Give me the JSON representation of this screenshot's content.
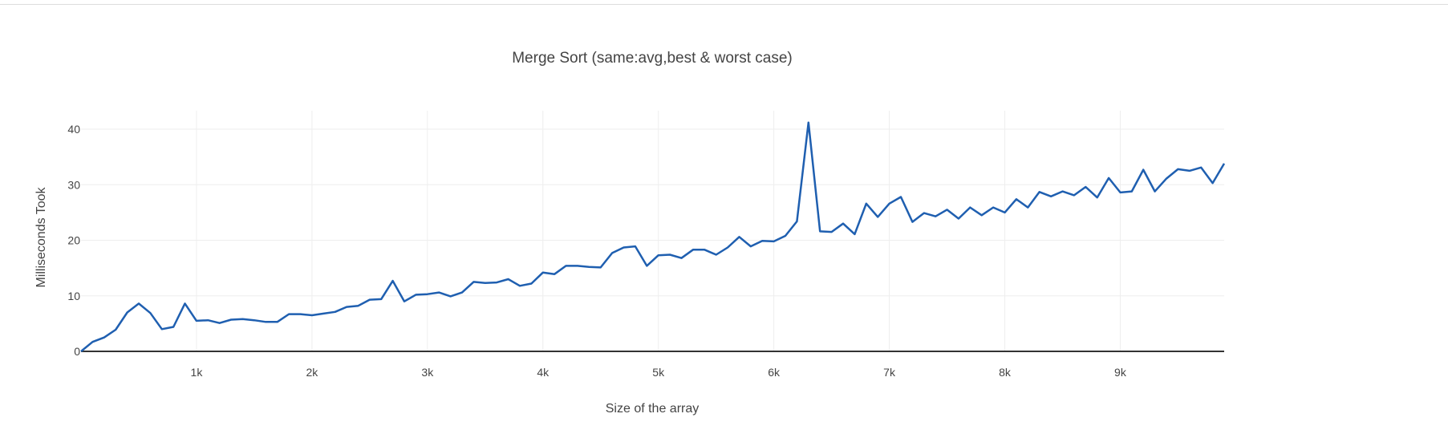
{
  "chart_data": {
    "type": "line",
    "title": "Merge Sort (same:avg,best & worst case)",
    "xlabel": "Size of the array",
    "ylabel": "Milliseconds Took",
    "xlim": [
      0,
      9900
    ],
    "ylim": [
      0,
      44
    ],
    "x_ticks": [
      1000,
      2000,
      3000,
      4000,
      5000,
      6000,
      7000,
      8000,
      9000
    ],
    "x_tick_labels": [
      "1k",
      "2k",
      "3k",
      "4k",
      "5k",
      "6k",
      "7k",
      "8k",
      "9k"
    ],
    "y_ticks": [
      0,
      10,
      20,
      30,
      40
    ],
    "y_tick_labels": [
      "0",
      "10",
      "20",
      "30",
      "40"
    ],
    "grid": true,
    "legend": false,
    "x": [
      0,
      100,
      200,
      300,
      400,
      500,
      600,
      700,
      800,
      900,
      1000,
      1100,
      1200,
      1300,
      1400,
      1500,
      1600,
      1700,
      1800,
      1900,
      2000,
      2100,
      2200,
      2300,
      2400,
      2500,
      2600,
      2700,
      2800,
      2900,
      3000,
      3100,
      3200,
      3300,
      3400,
      3500,
      3600,
      3700,
      3800,
      3900,
      4000,
      4100,
      4200,
      4300,
      4400,
      4500,
      4600,
      4700,
      4800,
      4900,
      5000,
      5100,
      5200,
      5300,
      5400,
      5500,
      5600,
      5700,
      5800,
      5900,
      6000,
      6100,
      6200,
      6300,
      6400,
      6500,
      6600,
      6700,
      6800,
      6900,
      7000,
      7100,
      7200,
      7300,
      7400,
      7500,
      7600,
      7700,
      7800,
      7900,
      8000,
      8100,
      8200,
      8300,
      8400,
      8500,
      8600,
      8700,
      8800,
      8900,
      9000,
      9100,
      9200,
      9300,
      9400,
      9500,
      9600,
      9700,
      9800,
      9900
    ],
    "series": [
      {
        "color": "#1f5fb0",
        "values": [
          0,
          1.7,
          2.5,
          3.9,
          7,
          8.6,
          6.9,
          4,
          4.4,
          8.6,
          5.5,
          5.6,
          5.1,
          5.7,
          5.8,
          5.6,
          5.3,
          5.3,
          6.7,
          6.7,
          6.5,
          6.8,
          7.1,
          8,
          8.2,
          9.3,
          9.4,
          12.7,
          9,
          10.2,
          10.3,
          10.6,
          9.9,
          10.6,
          12.5,
          12.3,
          12.4,
          13,
          11.8,
          12.2,
          14.2,
          13.9,
          15.4,
          15.4,
          15.2,
          15.1,
          17.7,
          18.7,
          18.9,
          15.4,
          17.3,
          17.4,
          16.8,
          18.3,
          18.3,
          17.4,
          18.7,
          20.6,
          18.9,
          19.9,
          19.8,
          20.8,
          23.4,
          41.2,
          21.6,
          21.5,
          23,
          21.1,
          26.6,
          24.2,
          26.6,
          27.8,
          23.3,
          24.9,
          24.3,
          25.5,
          23.9,
          25.9,
          24.5,
          25.9,
          25,
          27.4,
          25.9,
          28.7,
          27.9,
          28.8,
          28.1,
          29.6,
          27.7,
          31.2,
          28.6,
          28.8,
          32.7,
          28.8,
          31.1,
          32.8,
          32.5,
          33.1,
          30.3,
          33.8
        ]
      }
    ]
  }
}
